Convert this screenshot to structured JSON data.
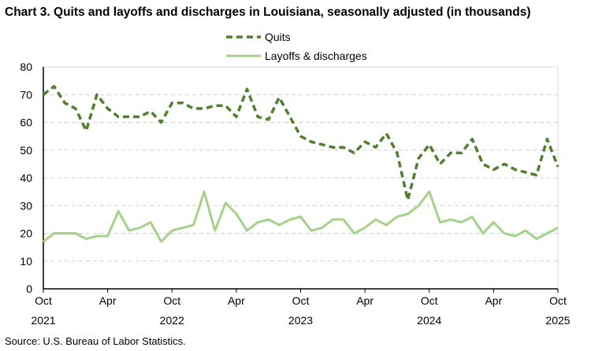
{
  "chart_data": {
    "type": "line",
    "title": "Chart 3. Quits and layoffs and discharges in Louisiana, seasonally adjusted (in thousands)",
    "source": "Source: U.S. Bureau of Labor Statistics.",
    "x_start": "2021-10",
    "x_end": "2025-10",
    "frequency": "monthly",
    "x_ticks": [
      {
        "month": "Oct",
        "year": "2021"
      },
      {
        "month": "Apr",
        "year": ""
      },
      {
        "month": "Oct",
        "year": "2022"
      },
      {
        "month": "Apr",
        "year": ""
      },
      {
        "month": "Oct",
        "year": "2023"
      },
      {
        "month": "Apr",
        "year": ""
      },
      {
        "month": "Oct",
        "year": "2024"
      },
      {
        "month": "Apr",
        "year": ""
      },
      {
        "month": "Oct",
        "year": "2025"
      }
    ],
    "ylim": [
      0,
      80
    ],
    "y_ticks": [
      0,
      10,
      20,
      30,
      40,
      50,
      60,
      70,
      80
    ],
    "grid": true,
    "legend_position": "top-center",
    "series": [
      {
        "name": "Quits",
        "color": "#4f7f2f",
        "style": "dashed",
        "values": [
          70,
          73,
          67,
          65,
          57,
          70,
          65,
          62,
          62,
          62,
          64,
          60,
          67,
          67,
          65,
          65,
          66,
          66,
          62,
          72,
          62,
          61,
          69,
          62,
          55,
          53,
          52,
          51,
          51,
          49,
          53,
          51,
          56,
          49,
          32,
          47,
          52,
          45,
          49,
          49,
          54,
          45,
          43,
          45,
          43,
          42,
          41,
          54,
          44
        ]
      },
      {
        "name": "Layoffs & discharges",
        "color": "#a5d18a",
        "style": "solid",
        "values": [
          17,
          20,
          20,
          20,
          18,
          19,
          19,
          28,
          21,
          22,
          24,
          17,
          21,
          22,
          23,
          35,
          21,
          31,
          27,
          21,
          24,
          25,
          23,
          25,
          26,
          21,
          22,
          25,
          25,
          20,
          22,
          25,
          23,
          26,
          27,
          30,
          35,
          24,
          25,
          24,
          26,
          20,
          24,
          20,
          19,
          21,
          18,
          20,
          22
        ]
      }
    ]
  }
}
